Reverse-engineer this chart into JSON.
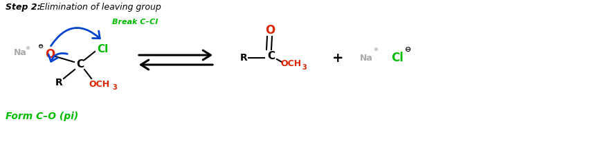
{
  "title_bold": "Step 2:",
  "title_italic": " Elimination of leaving group",
  "break_label": "Break C–Cl",
  "form_label": "Form C–O (pi)",
  "bg_color": "#ffffff",
  "gray": "#aaaaaa",
  "green": "#00bb00",
  "red": "#dd2200",
  "blue": "#0044cc",
  "black": "#000000",
  "figsize": [
    8.78,
    2.12
  ],
  "dpi": 100
}
